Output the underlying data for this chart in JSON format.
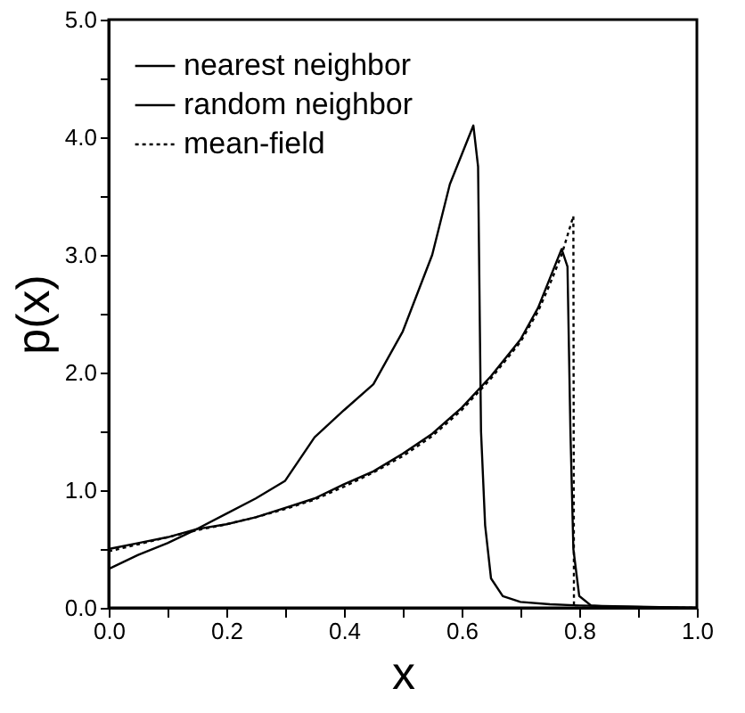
{
  "chart_data": {
    "type": "line",
    "xlabel": "x",
    "ylabel": "p(x)",
    "xlim": [
      0,
      1
    ],
    "ylim": [
      0,
      5
    ],
    "xticks": [
      {
        "value": 0,
        "label": "0.0"
      },
      {
        "value": 0.1,
        "label": null
      },
      {
        "value": 0.2,
        "label": "0.2"
      },
      {
        "value": 0.3,
        "label": null
      },
      {
        "value": 0.4,
        "label": "0.4"
      },
      {
        "value": 0.5,
        "label": null
      },
      {
        "value": 0.6,
        "label": "0.6"
      },
      {
        "value": 0.7,
        "label": null
      },
      {
        "value": 0.8,
        "label": "0.8"
      },
      {
        "value": 0.9,
        "label": null
      },
      {
        "value": 1,
        "label": "1.0"
      }
    ],
    "yticks": [
      {
        "value": 0,
        "label": "0.0"
      },
      {
        "value": 0.5,
        "label": null
      },
      {
        "value": 1,
        "label": "1.0"
      },
      {
        "value": 1.5,
        "label": null
      },
      {
        "value": 2,
        "label": "2.0"
      },
      {
        "value": 2.5,
        "label": null
      },
      {
        "value": 3,
        "label": "3.0"
      },
      {
        "value": 3.5,
        "label": null
      },
      {
        "value": 4,
        "label": "4.0"
      },
      {
        "value": 4.5,
        "label": null
      },
      {
        "value": 5,
        "label": "5.0"
      }
    ],
    "grid": false,
    "legend": "top left",
    "marker": "none",
    "series": [
      {
        "name": "nearest neighbor",
        "color": "#000000",
        "line_style": "solid",
        "x": [
          0,
          0.05,
          0.1,
          0.15,
          0.2,
          0.25,
          0.3,
          0.35,
          0.4,
          0.45,
          0.5,
          0.55,
          0.58,
          0.6,
          0.62,
          0.628,
          0.633,
          0.64,
          0.65,
          0.67,
          0.7,
          0.75,
          0.8,
          0.9,
          1.0
        ],
        "values": [
          0.33,
          0.45,
          0.55,
          0.67,
          0.8,
          0.93,
          1.08,
          1.45,
          1.68,
          1.9,
          2.35,
          3.0,
          3.6,
          3.85,
          4.1,
          3.75,
          1.5,
          0.7,
          0.25,
          0.1,
          0.05,
          0.03,
          0.02,
          0.01,
          0.0
        ]
      },
      {
        "name": "random neighbor",
        "color": "#000000",
        "line_style": "solid",
        "x": [
          0,
          0.05,
          0.1,
          0.15,
          0.2,
          0.25,
          0.3,
          0.35,
          0.4,
          0.45,
          0.5,
          0.55,
          0.6,
          0.65,
          0.7,
          0.73,
          0.75,
          0.77,
          0.78,
          0.785,
          0.79,
          0.8,
          0.82,
          0.85,
          1.0
        ],
        "values": [
          0.5,
          0.55,
          0.6,
          0.67,
          0.71,
          0.77,
          0.85,
          0.93,
          1.05,
          1.16,
          1.31,
          1.48,
          1.7,
          1.97,
          2.28,
          2.55,
          2.8,
          3.05,
          2.9,
          1.5,
          0.5,
          0.1,
          0.02,
          0.01,
          0.0
        ]
      },
      {
        "name": "mean-field",
        "color": "#000000",
        "line_style": "dotted",
        "x": [
          0,
          0.05,
          0.1,
          0.15,
          0.2,
          0.25,
          0.3,
          0.35,
          0.4,
          0.45,
          0.5,
          0.55,
          0.6,
          0.65,
          0.7,
          0.73,
          0.75,
          0.77,
          0.79,
          0.791,
          1.0
        ],
        "values": [
          0.48,
          0.54,
          0.6,
          0.66,
          0.71,
          0.77,
          0.84,
          0.92,
          1.03,
          1.15,
          1.29,
          1.46,
          1.68,
          1.95,
          2.26,
          2.52,
          2.75,
          3.0,
          3.33,
          0.0,
          0.0
        ]
      }
    ]
  }
}
